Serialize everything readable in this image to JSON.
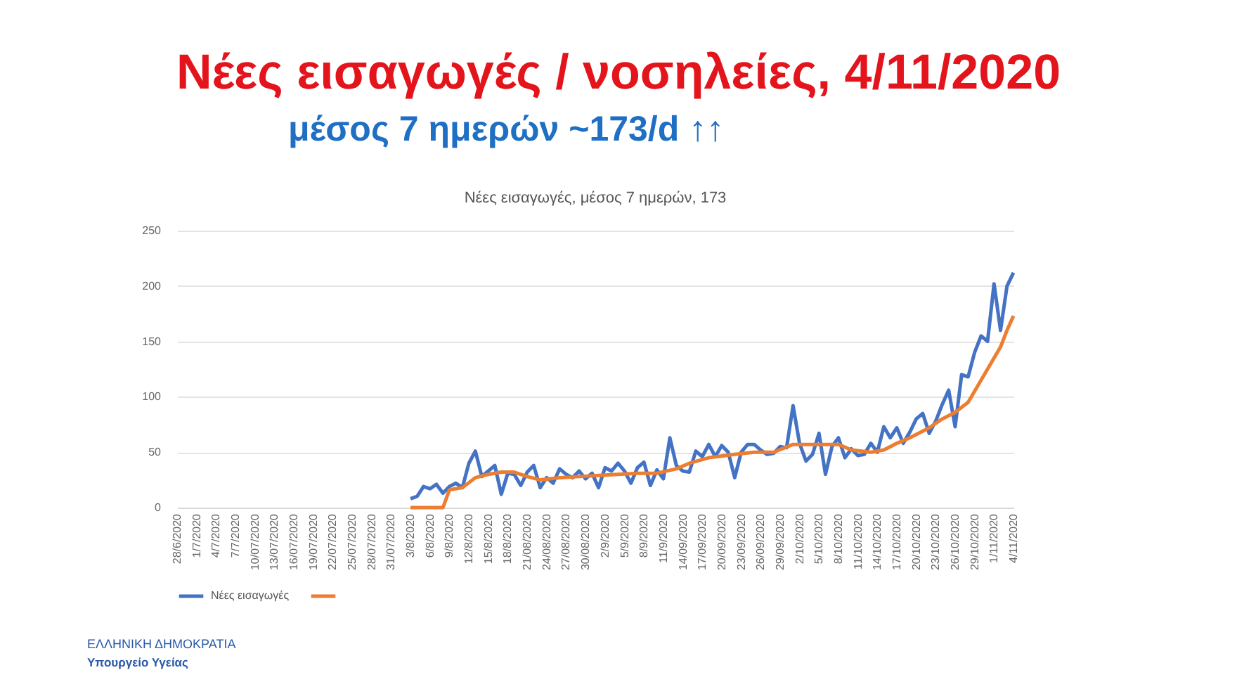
{
  "chart_data": {
    "type": "line",
    "title": "Νέες εισαγωγές / νοσηλείες, 4/11/2020",
    "subtitle": "μέσος 7 ημερών ~173/d ↑↑",
    "annotations": [
      "Νέες εισαγωγές, μέσος 7 ημερών, 173",
      "ΕΛΛΗΝΙΚΗ ΔΗΜΟΚΡΑΤΙΑ",
      "Υπουργείο Υγείας"
    ],
    "xlim": [
      "2020-06-28",
      "2020-11-04"
    ],
    "xticks": [
      {
        "value": "2020-06-28",
        "label": "28/6/2020"
      },
      {
        "value": "2020-07-01",
        "label": "1/7/2020"
      },
      {
        "value": "2020-07-04",
        "label": "4/7/2020"
      },
      {
        "value": "2020-07-07",
        "label": "7/7/2020"
      },
      {
        "value": "2020-07-10",
        "label": "10/07/2020"
      },
      {
        "value": "2020-07-13",
        "label": "13/07/2020"
      },
      {
        "value": "2020-07-16",
        "label": "16/07/2020"
      },
      {
        "value": "2020-07-19",
        "label": "19/07/2020"
      },
      {
        "value": "2020-07-22",
        "label": "22/07/2020"
      },
      {
        "value": "2020-07-25",
        "label": "25/07/2020"
      },
      {
        "value": "2020-07-28",
        "label": "28/07/2020"
      },
      {
        "value": "2020-07-31",
        "label": "31/07/2020"
      },
      {
        "value": "2020-08-03",
        "label": "3/8/2020"
      },
      {
        "value": "2020-08-06",
        "label": "6/8/2020"
      },
      {
        "value": "2020-08-09",
        "label": "9/8/2020"
      },
      {
        "value": "2020-08-12",
        "label": "12/8/2020"
      },
      {
        "value": "2020-08-15",
        "label": "15/8/2020"
      },
      {
        "value": "2020-08-18",
        "label": "18/8/2020"
      },
      {
        "value": "2020-08-21",
        "label": "21/08/2020"
      },
      {
        "value": "2020-08-24",
        "label": "24/08/2020"
      },
      {
        "value": "2020-08-27",
        "label": "27/08/2020"
      },
      {
        "value": "2020-08-30",
        "label": "30/08/2020"
      },
      {
        "value": "2020-09-02",
        "label": "2/9/2020"
      },
      {
        "value": "2020-09-05",
        "label": "5/9/2020"
      },
      {
        "value": "2020-09-08",
        "label": "8/9/2020"
      },
      {
        "value": "2020-09-11",
        "label": "11/9/2020"
      },
      {
        "value": "2020-09-14",
        "label": "14/09/2020"
      },
      {
        "value": "2020-09-17",
        "label": "17/09/2020"
      },
      {
        "value": "2020-09-20",
        "label": "20/09/2020"
      },
      {
        "value": "2020-09-23",
        "label": "23/09/2020"
      },
      {
        "value": "2020-09-26",
        "label": "26/09/2020"
      },
      {
        "value": "2020-09-29",
        "label": "29/09/2020"
      },
      {
        "value": "2020-10-02",
        "label": "2/10/2020"
      },
      {
        "value": "2020-10-05",
        "label": "5/10/2020"
      },
      {
        "value": "2020-10-08",
        "label": "8/10/2020"
      },
      {
        "value": "2020-10-11",
        "label": "11/10/2020"
      },
      {
        "value": "2020-10-14",
        "label": "14/10/2020"
      },
      {
        "value": "2020-10-17",
        "label": "17/10/2020"
      },
      {
        "value": "2020-10-20",
        "label": "20/10/2020"
      },
      {
        "value": "2020-10-23",
        "label": "23/10/2020"
      },
      {
        "value": "2020-10-26",
        "label": "26/10/2020"
      },
      {
        "value": "2020-10-29",
        "label": "29/10/2020"
      },
      {
        "value": "2020-11-01",
        "label": "1/11/2020"
      },
      {
        "value": "2020-11-04",
        "label": "4/11/2020"
      }
    ],
    "ylim": [
      0,
      250
    ],
    "yticks": [
      0,
      50,
      100,
      150,
      200,
      250
    ],
    "grid": "y",
    "legend": "bottom",
    "series": [
      {
        "name": "Νέες εισαγωγές",
        "color": "#4472c4",
        "x": [
          "2020-08-03",
          "2020-08-04",
          "2020-08-05",
          "2020-08-06",
          "2020-08-07",
          "2020-08-08",
          "2020-08-09",
          "2020-08-10",
          "2020-08-11",
          "2020-08-12",
          "2020-08-13",
          "2020-08-14",
          "2020-08-15",
          "2020-08-16",
          "2020-08-17",
          "2020-08-18",
          "2020-08-19",
          "2020-08-20",
          "2020-08-21",
          "2020-08-22",
          "2020-08-23",
          "2020-08-24",
          "2020-08-25",
          "2020-08-26",
          "2020-08-27",
          "2020-08-28",
          "2020-08-29",
          "2020-08-30",
          "2020-08-31",
          "2020-09-01",
          "2020-09-02",
          "2020-09-03",
          "2020-09-04",
          "2020-09-05",
          "2020-09-06",
          "2020-09-07",
          "2020-09-08",
          "2020-09-09",
          "2020-09-10",
          "2020-09-11",
          "2020-09-12",
          "2020-09-13",
          "2020-09-14",
          "2020-09-15",
          "2020-09-16",
          "2020-09-17",
          "2020-09-18",
          "2020-09-19",
          "2020-09-20",
          "2020-09-21",
          "2020-09-22",
          "2020-09-23",
          "2020-09-24",
          "2020-09-25",
          "2020-09-26",
          "2020-09-27",
          "2020-09-28",
          "2020-09-29",
          "2020-09-30",
          "2020-10-01",
          "2020-10-02",
          "2020-10-03",
          "2020-10-04",
          "2020-10-05",
          "2020-10-06",
          "2020-10-07",
          "2020-10-08",
          "2020-10-09",
          "2020-10-10",
          "2020-10-11",
          "2020-10-12",
          "2020-10-13",
          "2020-10-14",
          "2020-10-15",
          "2020-10-16",
          "2020-10-17",
          "2020-10-18",
          "2020-10-19",
          "2020-10-20",
          "2020-10-21",
          "2020-10-22",
          "2020-10-23",
          "2020-10-24",
          "2020-10-25",
          "2020-10-26",
          "2020-10-27",
          "2020-10-28",
          "2020-10-29",
          "2020-10-30",
          "2020-10-31",
          "2020-11-01",
          "2020-11-02",
          "2020-11-03",
          "2020-11-04"
        ],
        "values": [
          8,
          10,
          19,
          17,
          21,
          13,
          19,
          22,
          18,
          40,
          51,
          28,
          33,
          38,
          12,
          31,
          30,
          20,
          32,
          38,
          18,
          27,
          22,
          35,
          30,
          27,
          33,
          26,
          31,
          18,
          36,
          33,
          40,
          33,
          22,
          36,
          41,
          20,
          34,
          26,
          63,
          38,
          33,
          32,
          51,
          46,
          57,
          46,
          56,
          50,
          27,
          50,
          57,
          57,
          52,
          48,
          49,
          55,
          54,
          92,
          58,
          42,
          48,
          67,
          30,
          55,
          63,
          45,
          53,
          47,
          48,
          58,
          50,
          73,
          63,
          72,
          58,
          68,
          80,
          85,
          67,
          78,
          93,
          106,
          73,
          120,
          118,
          140,
          155,
          150,
          202,
          160,
          200,
          212
        ]
      },
      {
        "color": "#ed7d31",
        "x": [
          "2020-08-03",
          "2020-08-08",
          "2020-08-09",
          "2020-08-11",
          "2020-08-13",
          "2020-08-15",
          "2020-08-17",
          "2020-08-19",
          "2020-08-21",
          "2020-08-23",
          "2020-08-26",
          "2020-08-29",
          "2020-09-01",
          "2020-09-04",
          "2020-09-07",
          "2020-09-10",
          "2020-09-13",
          "2020-09-15",
          "2020-09-18",
          "2020-09-22",
          "2020-09-25",
          "2020-09-28",
          "2020-10-01",
          "2020-10-05",
          "2020-10-08",
          "2020-10-10",
          "2020-10-13",
          "2020-10-15",
          "2020-10-17",
          "2020-10-19",
          "2020-10-22",
          "2020-10-24",
          "2020-10-26",
          "2020-10-28",
          "2020-10-30",
          "2020-10-31",
          "2020-11-02",
          "2020-11-03",
          "2020-11-04"
        ],
        "values": [
          0,
          0,
          16,
          18,
          27,
          30,
          32,
          32,
          28,
          25,
          27,
          28,
          29,
          30,
          31,
          31,
          35,
          40,
          45,
          48,
          50,
          50,
          57,
          57,
          57,
          52,
          50,
          52,
          58,
          63,
          72,
          80,
          86,
          95,
          115,
          125,
          145,
          160,
          173
        ]
      }
    ]
  }
}
